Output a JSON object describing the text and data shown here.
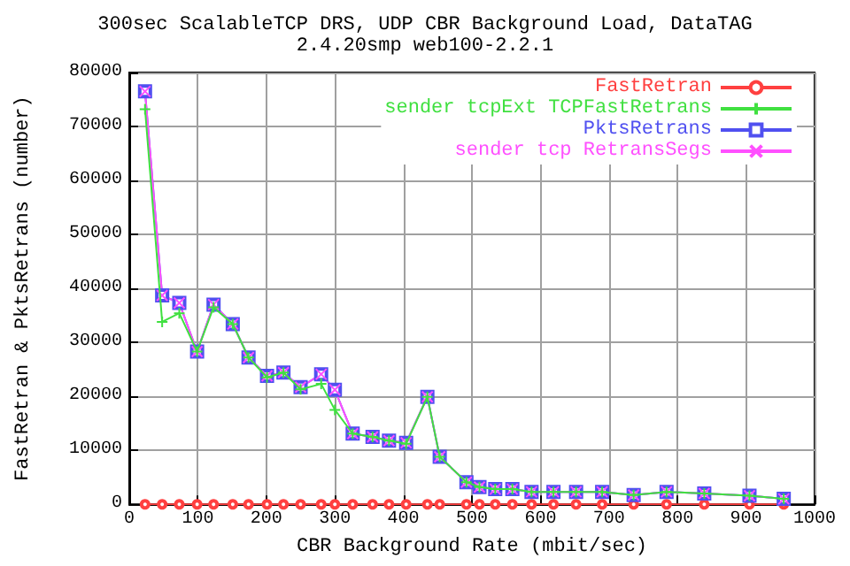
{
  "chart_data": {
    "type": "line",
    "title": "300sec ScalableTCP DRS, UDP CBR Background Load, DataTAG",
    "subtitle": "2.4.20smp web100-2.2.1",
    "xlabel": "CBR Background Rate (mbit/sec)",
    "ylabel": "FastRetran & PktsRetrans (number)",
    "x": [
      23,
      48,
      73,
      99,
      123,
      151,
      174,
      201,
      225,
      250,
      280,
      300,
      326,
      355,
      379,
      404,
      435,
      453,
      492,
      511,
      534,
      559,
      587,
      619,
      652,
      690,
      736,
      784,
      839,
      905,
      955
    ],
    "series": [
      {
        "name": "FastRetran",
        "color": "#ff4040",
        "marker": "circle",
        "values": [
          0,
          0,
          0,
          0,
          0,
          0,
          0,
          0,
          0,
          0,
          0,
          0,
          0,
          0,
          0,
          0,
          0,
          0,
          0,
          0,
          0,
          0,
          0,
          0,
          0,
          0,
          0,
          0,
          0,
          0,
          0
        ]
      },
      {
        "name": "sender tcpExt TCPFastRetrans",
        "color": "#40e040",
        "marker": "cross",
        "values": [
          73200,
          33800,
          35400,
          28300,
          36500,
          33400,
          27200,
          23500,
          24400,
          21300,
          22300,
          17500,
          13100,
          12500,
          11800,
          11200,
          19900,
          8800,
          4100,
          3200,
          2800,
          2800,
          2300,
          2300,
          2300,
          2300,
          1700,
          2300,
          2000,
          1600,
          1000
        ]
      },
      {
        "name": "PktsRetrans",
        "color": "#5050f0",
        "marker": "square",
        "values": [
          76500,
          38700,
          37300,
          28300,
          37000,
          33400,
          27200,
          23800,
          24400,
          21700,
          24100,
          21200,
          13100,
          12500,
          11800,
          11400,
          19900,
          8800,
          4100,
          3200,
          2800,
          2800,
          2300,
          2300,
          2300,
          2300,
          1700,
          2300,
          2000,
          1600,
          1000
        ]
      },
      {
        "name": "sender tcp RetransSegs",
        "color": "#ff50ff",
        "marker": "x",
        "values": [
          76500,
          38700,
          37300,
          28300,
          37000,
          33400,
          27200,
          23800,
          24400,
          21700,
          24100,
          21200,
          13100,
          12500,
          11800,
          11400,
          19900,
          8800,
          4100,
          3200,
          2800,
          2800,
          2300,
          2300,
          2300,
          2300,
          1700,
          2300,
          2000,
          1600,
          1000
        ]
      }
    ],
    "xlim": [
      0,
      1000
    ],
    "xticks": [
      0,
      100,
      200,
      300,
      400,
      500,
      600,
      700,
      800,
      900,
      1000
    ],
    "ylim": [
      0,
      80000
    ],
    "yticks": [
      0,
      10000,
      20000,
      30000,
      40000,
      50000,
      60000,
      70000,
      80000
    ],
    "grid": true,
    "legend": "top right",
    "line_style": "solid"
  }
}
